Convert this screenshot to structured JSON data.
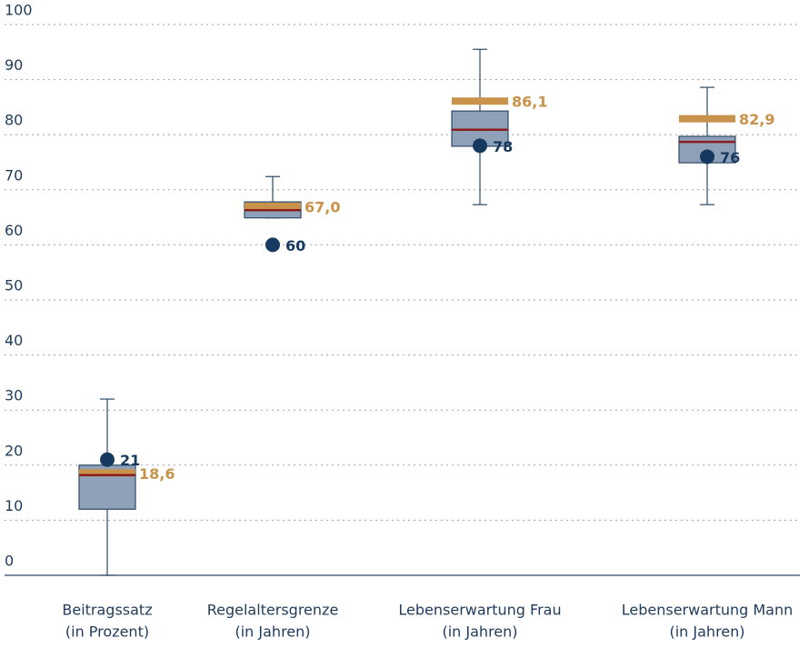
{
  "chart_data": {
    "type": "box",
    "categories": [
      "Beitragssatz",
      "Regelaltersgrenze",
      "Lebenserwartung Frau",
      "Lebenserwartung Mann"
    ],
    "category_notes": [
      "(in Prozent)",
      "(in Jahren)",
      "(in Jahren)",
      "(in Jahren)"
    ],
    "boxes": {
      "whisker_low": [
        0,
        64.9,
        67.3,
        67.3
      ],
      "q1": [
        12,
        64.9,
        77.9,
        74.9
      ],
      "median": [
        18.2,
        66.3,
        80.9,
        78.7
      ],
      "q3": [
        20,
        67.8,
        84.3,
        79.7
      ],
      "whisker_high": [
        32,
        72.4,
        95.5,
        88.6
      ],
      "color": "#8ea1b8",
      "edge_color": "#2c4a6b",
      "median_color": "#8b1d1d"
    },
    "reference": {
      "values": [
        18.6,
        67.0,
        86.1,
        82.9
      ],
      "value_labels": [
        "18,6",
        "67,0",
        "86,1",
        "82,9"
      ],
      "color": "#c8924a"
    },
    "points": {
      "values": [
        21,
        60,
        78,
        76
      ],
      "color": "#163a5f"
    },
    "ylim": [
      0,
      100
    ],
    "yticks": [
      0,
      10,
      20,
      30,
      40,
      50,
      60,
      70,
      80,
      90,
      100
    ],
    "grid": true
  }
}
